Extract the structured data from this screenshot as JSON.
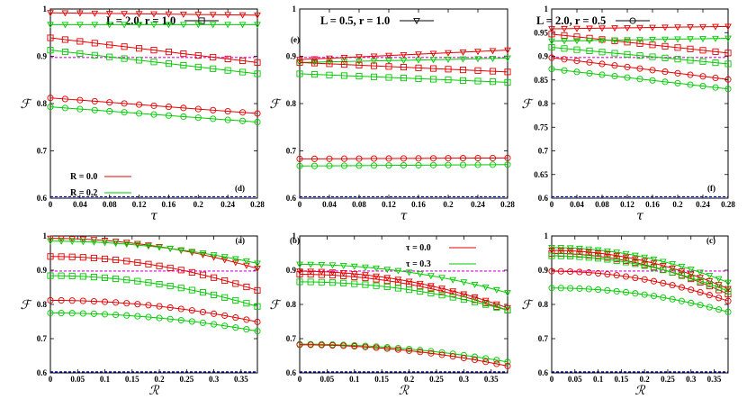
{
  "legend_top": [
    {
      "label": "L = 2.0, r = 1.0",
      "marker": "square"
    },
    {
      "label": "L = 0.5, r = 1.0",
      "marker": "triangle"
    },
    {
      "label": "L = 2.0, r = 0.5",
      "marker": "circle"
    }
  ],
  "colors": {
    "R0": "#e60000",
    "R02": "#00cc00",
    "magenta": "#e600e6",
    "blue": "#0000aa"
  },
  "chart_data": [
    {
      "type": "line",
      "tag": "(d)",
      "xlabel": "τ",
      "ylabel": "ℱ",
      "xlim": [
        0,
        0.28
      ],
      "ylim": [
        0.6,
        1.0
      ],
      "xticks": [
        "0",
        "0.04",
        "0.08",
        "0.12",
        "0.16",
        "0.2",
        "0.24",
        "0.28"
      ],
      "yticks": [
        "0.6",
        "0.7",
        "0.8",
        "0.9",
        "1"
      ],
      "legend": [
        {
          "label": "R = 0.0",
          "color": "#e60000"
        },
        {
          "label": "R = 0.2",
          "color": "#00cc00"
        }
      ],
      "hlines": [
        {
          "y": 0.8975,
          "color": "#e600e6"
        },
        {
          "y": 0.603,
          "color": "#0000aa"
        }
      ],
      "series": [
        {
          "marker": "triangle",
          "color": "#e60000",
          "x0": 0,
          "x1": 0.28,
          "y0": 0.992,
          "y1": 0.987,
          "n": 15
        },
        {
          "marker": "triangle",
          "color": "#00cc00",
          "x0": 0,
          "x1": 0.28,
          "y0": 0.967,
          "y1": 0.967,
          "n": 15
        },
        {
          "marker": "square",
          "color": "#e60000",
          "x0": 0,
          "x1": 0.28,
          "y0": 0.939,
          "y1": 0.887,
          "n": 15
        },
        {
          "marker": "square",
          "color": "#00cc00",
          "x0": 0,
          "x1": 0.28,
          "y0": 0.913,
          "y1": 0.863,
          "n": 15
        },
        {
          "marker": "circle",
          "color": "#e60000",
          "x0": 0,
          "x1": 0.28,
          "y0": 0.812,
          "y1": 0.779,
          "n": 15
        },
        {
          "marker": "circle",
          "color": "#00cc00",
          "x0": 0,
          "x1": 0.28,
          "y0": 0.793,
          "y1": 0.761,
          "n": 15
        }
      ]
    },
    {
      "type": "line",
      "tag": "(e)",
      "xlabel": "τ",
      "ylabel": "ℱ",
      "xlim": [
        0,
        0.28
      ],
      "ylim": [
        0.6,
        1.0
      ],
      "xticks": [
        "0",
        "0.04",
        "0.08",
        "0.12",
        "0.16",
        "0.2",
        "0.24",
        "0.28"
      ],
      "yticks": [
        "0.6",
        "0.7",
        "0.8",
        "0.9",
        "1"
      ],
      "hlines": [
        {
          "y": 0.8975,
          "color": "#e600e6"
        },
        {
          "y": 0.603,
          "color": "#0000aa"
        }
      ],
      "series": [
        {
          "marker": "triangle",
          "color": "#e60000",
          "x0": 0,
          "x1": 0.28,
          "y0": 0.893,
          "y1": 0.913,
          "n": 15
        },
        {
          "marker": "triangle",
          "color": "#00cc00",
          "x0": 0,
          "x1": 0.28,
          "y0": 0.887,
          "y1": 0.896,
          "n": 15
        },
        {
          "marker": "square",
          "color": "#e60000",
          "x0": 0,
          "x1": 0.28,
          "y0": 0.887,
          "y1": 0.867,
          "n": 15
        },
        {
          "marker": "square",
          "color": "#00cc00",
          "x0": 0,
          "x1": 0.28,
          "y0": 0.863,
          "y1": 0.845,
          "n": 15
        },
        {
          "marker": "circle",
          "color": "#e60000",
          "x0": 0,
          "x1": 0.28,
          "y0": 0.683,
          "y1": 0.685,
          "n": 15
        },
        {
          "marker": "circle",
          "color": "#00cc00",
          "x0": 0,
          "x1": 0.28,
          "y0": 0.668,
          "y1": 0.671,
          "n": 15
        }
      ]
    },
    {
      "type": "line",
      "tag": "(f)",
      "xlabel": "τ",
      "ylabel": "ℱ",
      "xlim": [
        0,
        0.28
      ],
      "ylim": [
        0.6,
        1.0
      ],
      "xticks": [
        "0",
        "0.04",
        "0.08",
        "0.12",
        "0.16",
        "0.2",
        "0.24",
        "0.28"
      ],
      "yticks": [
        "0.6",
        "0.65",
        "0.7",
        "0.75",
        "0.8",
        "0.85",
        "0.9",
        "0.95",
        "1"
      ],
      "hlines": [
        {
          "y": 0.8975,
          "color": "#e600e6"
        },
        {
          "y": 0.603,
          "color": "#0000aa"
        }
      ],
      "series": [
        {
          "marker": "triangle",
          "color": "#e60000",
          "x0": 0,
          "x1": 0.28,
          "y0": 0.958,
          "y1": 0.963,
          "n": 15
        },
        {
          "marker": "square",
          "color": "#e60000",
          "x0": 0,
          "x1": 0.28,
          "y0": 0.947,
          "y1": 0.907,
          "n": 15
        },
        {
          "marker": "triangle",
          "color": "#00cc00",
          "x0": 0,
          "x1": 0.28,
          "y0": 0.932,
          "y1": 0.938,
          "n": 15
        },
        {
          "marker": "square",
          "color": "#00cc00",
          "x0": 0,
          "x1": 0.28,
          "y0": 0.919,
          "y1": 0.884,
          "n": 15
        },
        {
          "marker": "circle",
          "color": "#e60000",
          "x0": 0,
          "x1": 0.28,
          "y0": 0.897,
          "y1": 0.851,
          "n": 15
        },
        {
          "marker": "circle",
          "color": "#00cc00",
          "x0": 0,
          "x1": 0.28,
          "y0": 0.873,
          "y1": 0.831,
          "n": 15
        }
      ]
    },
    {
      "type": "line",
      "tag": "(a)",
      "xlabel": "ℛ",
      "ylabel": "ℱ",
      "xlim": [
        0,
        0.38
      ],
      "ylim": [
        0.6,
        1.0
      ],
      "xticks": [
        "0",
        "0.05",
        "0.1",
        "0.15",
        "0.2",
        "0.25",
        "0.3",
        "0.35"
      ],
      "yticks": [
        "0.6",
        "0.7",
        "0.8",
        "0.9",
        "1"
      ],
      "hlines": [
        {
          "y": 0.8975,
          "color": "#e600e6"
        },
        {
          "y": 0.603,
          "color": "#0000aa"
        }
      ],
      "series": [
        {
          "marker": "triangle",
          "color": "#e60000",
          "x0": 0,
          "x1": 0.38,
          "y0": 0.993,
          "y1": 0.905,
          "n": 20
        },
        {
          "marker": "triangle",
          "color": "#00cc00",
          "x0": 0,
          "x1": 0.38,
          "y0": 0.985,
          "y1": 0.92,
          "n": 20
        },
        {
          "marker": "square",
          "color": "#e60000",
          "x0": 0,
          "x1": 0.38,
          "y0": 0.94,
          "y1": 0.841,
          "n": 20
        },
        {
          "marker": "square",
          "color": "#00cc00",
          "x0": 0,
          "x1": 0.38,
          "y0": 0.884,
          "y1": 0.794,
          "n": 20
        },
        {
          "marker": "circle",
          "color": "#e60000",
          "x0": 0,
          "x1": 0.38,
          "y0": 0.812,
          "y1": 0.749,
          "n": 20
        },
        {
          "marker": "circle",
          "color": "#00cc00",
          "x0": 0,
          "x1": 0.38,
          "y0": 0.775,
          "y1": 0.722,
          "n": 20
        }
      ]
    },
    {
      "type": "line",
      "tag": "(b)",
      "xlabel": "ℛ",
      "ylabel": "ℱ",
      "xlim": [
        0,
        0.38
      ],
      "ylim": [
        0.6,
        1.0
      ],
      "xticks": [
        "0",
        "0.05",
        "0.1",
        "0.15",
        "0.2",
        "0.25",
        "0.3",
        "0.35"
      ],
      "yticks": [
        "0.6",
        "0.7",
        "0.8",
        "0.9",
        "1"
      ],
      "legend": [
        {
          "label": "τ = 0.0",
          "color": "#e60000"
        },
        {
          "label": "τ = 0.3",
          "color": "#00cc00"
        }
      ],
      "hlines": [
        {
          "y": 0.8975,
          "color": "#e600e6"
        },
        {
          "y": 0.603,
          "color": "#0000aa"
        }
      ],
      "series": [
        {
          "marker": "triangle",
          "color": "#00cc00",
          "x0": 0,
          "x1": 0.38,
          "y0": 0.917,
          "y1": 0.834,
          "n": 20
        },
        {
          "marker": "triangle",
          "color": "#e60000",
          "x0": 0,
          "x1": 0.38,
          "y0": 0.897,
          "y1": 0.79,
          "n": 20
        },
        {
          "marker": "square",
          "color": "#e60000",
          "x0": 0,
          "x1": 0.38,
          "y0": 0.888,
          "y1": 0.783,
          "n": 20
        },
        {
          "marker": "square",
          "color": "#00cc00",
          "x0": 0,
          "x1": 0.38,
          "y0": 0.866,
          "y1": 0.783,
          "n": 20
        },
        {
          "marker": "circle",
          "color": "#00cc00",
          "x0": 0,
          "x1": 0.38,
          "y0": 0.684,
          "y1": 0.632,
          "n": 20
        },
        {
          "marker": "circle",
          "color": "#e60000",
          "x0": 0,
          "x1": 0.38,
          "y0": 0.682,
          "y1": 0.62,
          "n": 20
        }
      ]
    },
    {
      "type": "line",
      "tag": "(c)",
      "xlabel": "ℛ",
      "ylabel": "ℱ",
      "xlim": [
        0,
        0.38
      ],
      "ylim": [
        0.6,
        1.0
      ],
      "xticks": [
        "0",
        "0.05",
        "0.1",
        "0.15",
        "0.2",
        "0.25",
        "0.3",
        "0.35"
      ],
      "yticks": [
        "0.6",
        "0.7",
        "0.8",
        "0.9",
        "1"
      ],
      "hlines": [
        {
          "y": 0.8975,
          "color": "#e600e6"
        },
        {
          "y": 0.603,
          "color": "#0000aa"
        }
      ],
      "series": [
        {
          "marker": "triangle",
          "color": "#00cc00",
          "x0": 0,
          "x1": 0.38,
          "y0": 0.966,
          "y1": 0.864,
          "n": 20
        },
        {
          "marker": "triangle",
          "color": "#e60000",
          "x0": 0,
          "x1": 0.38,
          "y0": 0.958,
          "y1": 0.846,
          "n": 20
        },
        {
          "marker": "square",
          "color": "#e60000",
          "x0": 0,
          "x1": 0.38,
          "y0": 0.949,
          "y1": 0.83,
          "n": 20
        },
        {
          "marker": "square",
          "color": "#00cc00",
          "x0": 0,
          "x1": 0.38,
          "y0": 0.942,
          "y1": 0.839,
          "n": 20
        },
        {
          "marker": "circle",
          "color": "#e60000",
          "x0": 0,
          "x1": 0.38,
          "y0": 0.897,
          "y1": 0.81,
          "n": 20
        },
        {
          "marker": "circle",
          "color": "#00cc00",
          "x0": 0,
          "x1": 0.38,
          "y0": 0.848,
          "y1": 0.778,
          "n": 20
        }
      ]
    }
  ]
}
